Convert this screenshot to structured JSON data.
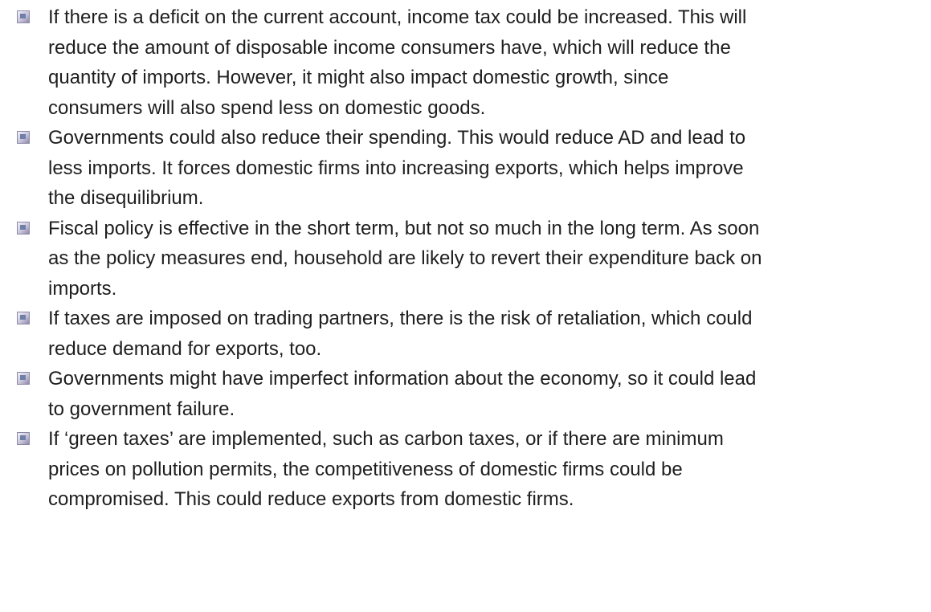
{
  "items": [
    {
      "lines": [
        "If there is a deficit on the current account, income tax could be increased. This will",
        "reduce the amount of disposable income consumers have, which will reduce the",
        "quantity of imports. However, it might also impact domestic growth, since",
        "consumers will also spend less on domestic goods."
      ]
    },
    {
      "lines": [
        "Governments could also reduce their spending. This would reduce AD and lead to",
        "less imports. It forces domestic firms into increasing exports, which helps improve",
        "the disequilibrium."
      ]
    },
    {
      "lines": [
        "Fiscal policy is effective in the short term, but not so much in the long term. As soon",
        "as the policy measures end, household are likely to revert their expenditure back on",
        "imports."
      ]
    },
    {
      "lines": [
        "If taxes are imposed on trading partners, there is the risk of retaliation, which could",
        "reduce demand for exports, too."
      ]
    },
    {
      "lines": [
        "Governments might have imperfect information about the economy, so it could lead",
        "to government failure."
      ]
    },
    {
      "lines": [
        "If ‘green taxes’ are implemented, such as carbon taxes, or if there are minimum",
        "prices on pollution permits, the competitiveness of domestic firms could be",
        "compromised. This could reduce exports from domestic firms."
      ]
    }
  ]
}
